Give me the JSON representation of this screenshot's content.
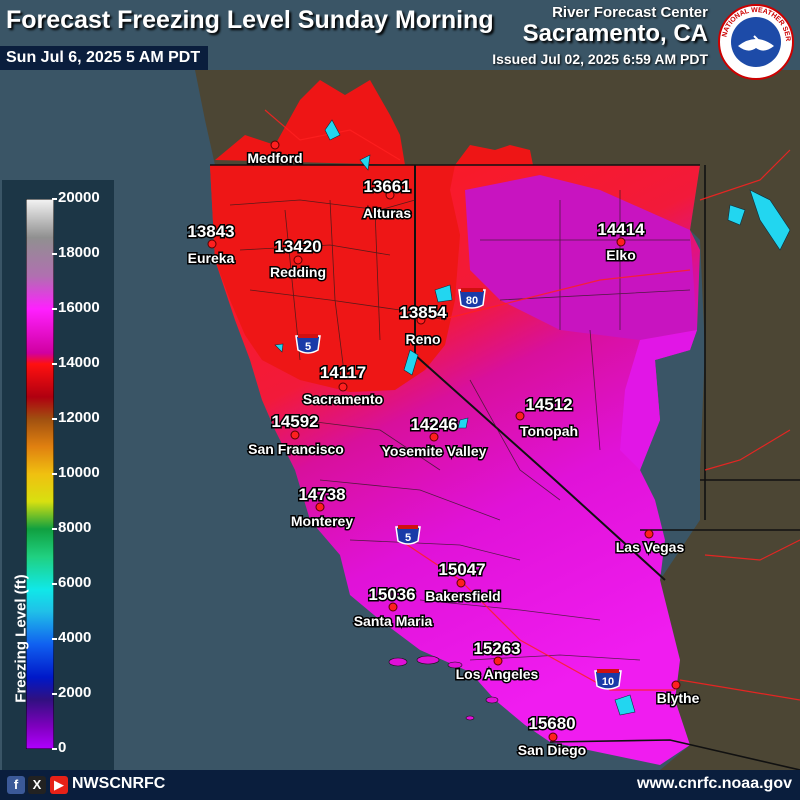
{
  "header": {
    "title": "Forecast Freezing Level Sunday Morning",
    "valid_time": "Sun Jul 6, 2025 5 AM PDT",
    "organization": "River Forecast Center",
    "office": "Sacramento, CA",
    "issued": "Issued Jul 02, 2025 6:59 AM PDT",
    "logo_text": "NATIONAL WEATHER SERVICE"
  },
  "legend": {
    "title": "Freezing Level (ft)",
    "ticks": [
      "20000",
      "18000",
      "16000",
      "14000",
      "12000",
      "10000",
      "8000",
      "6000",
      "4000",
      "2000",
      "0"
    ]
  },
  "stations": [
    {
      "name": "Medford",
      "value": ""
    },
    {
      "name": "Alturas",
      "value": "13661"
    },
    {
      "name": "Eureka",
      "value": "13843"
    },
    {
      "name": "Redding",
      "value": "13420"
    },
    {
      "name": "Elko",
      "value": "14414"
    },
    {
      "name": "Reno",
      "value": "13854"
    },
    {
      "name": "Sacramento",
      "value": "14117"
    },
    {
      "name": "Tonopah",
      "value": "14512"
    },
    {
      "name": "San Francisco",
      "value": "14592"
    },
    {
      "name": "Yosemite Valley",
      "value": "14246"
    },
    {
      "name": "Monterey",
      "value": "14738"
    },
    {
      "name": "Las Vegas",
      "value": ""
    },
    {
      "name": "Bakersfield",
      "value": "15047"
    },
    {
      "name": "Santa Maria",
      "value": "15036"
    },
    {
      "name": "Los Angeles",
      "value": "15263"
    },
    {
      "name": "Blythe",
      "value": ""
    },
    {
      "name": "San Diego",
      "value": "15680"
    }
  ],
  "highways": [
    "5",
    "80",
    "5",
    "10"
  ],
  "footer": {
    "handle": "NWSCNRFC",
    "url": "www.cnrfc.noaa.gov",
    "icons": [
      "facebook-icon",
      "x-icon",
      "youtube-icon"
    ]
  },
  "colors": {
    "ocean": "#3a5566",
    "land": "#4a4433",
    "red_zone": "#ee1111",
    "magenta_zone": "#e010d8",
    "purple_zone": "#c414c4",
    "water": "#22d6f0"
  }
}
